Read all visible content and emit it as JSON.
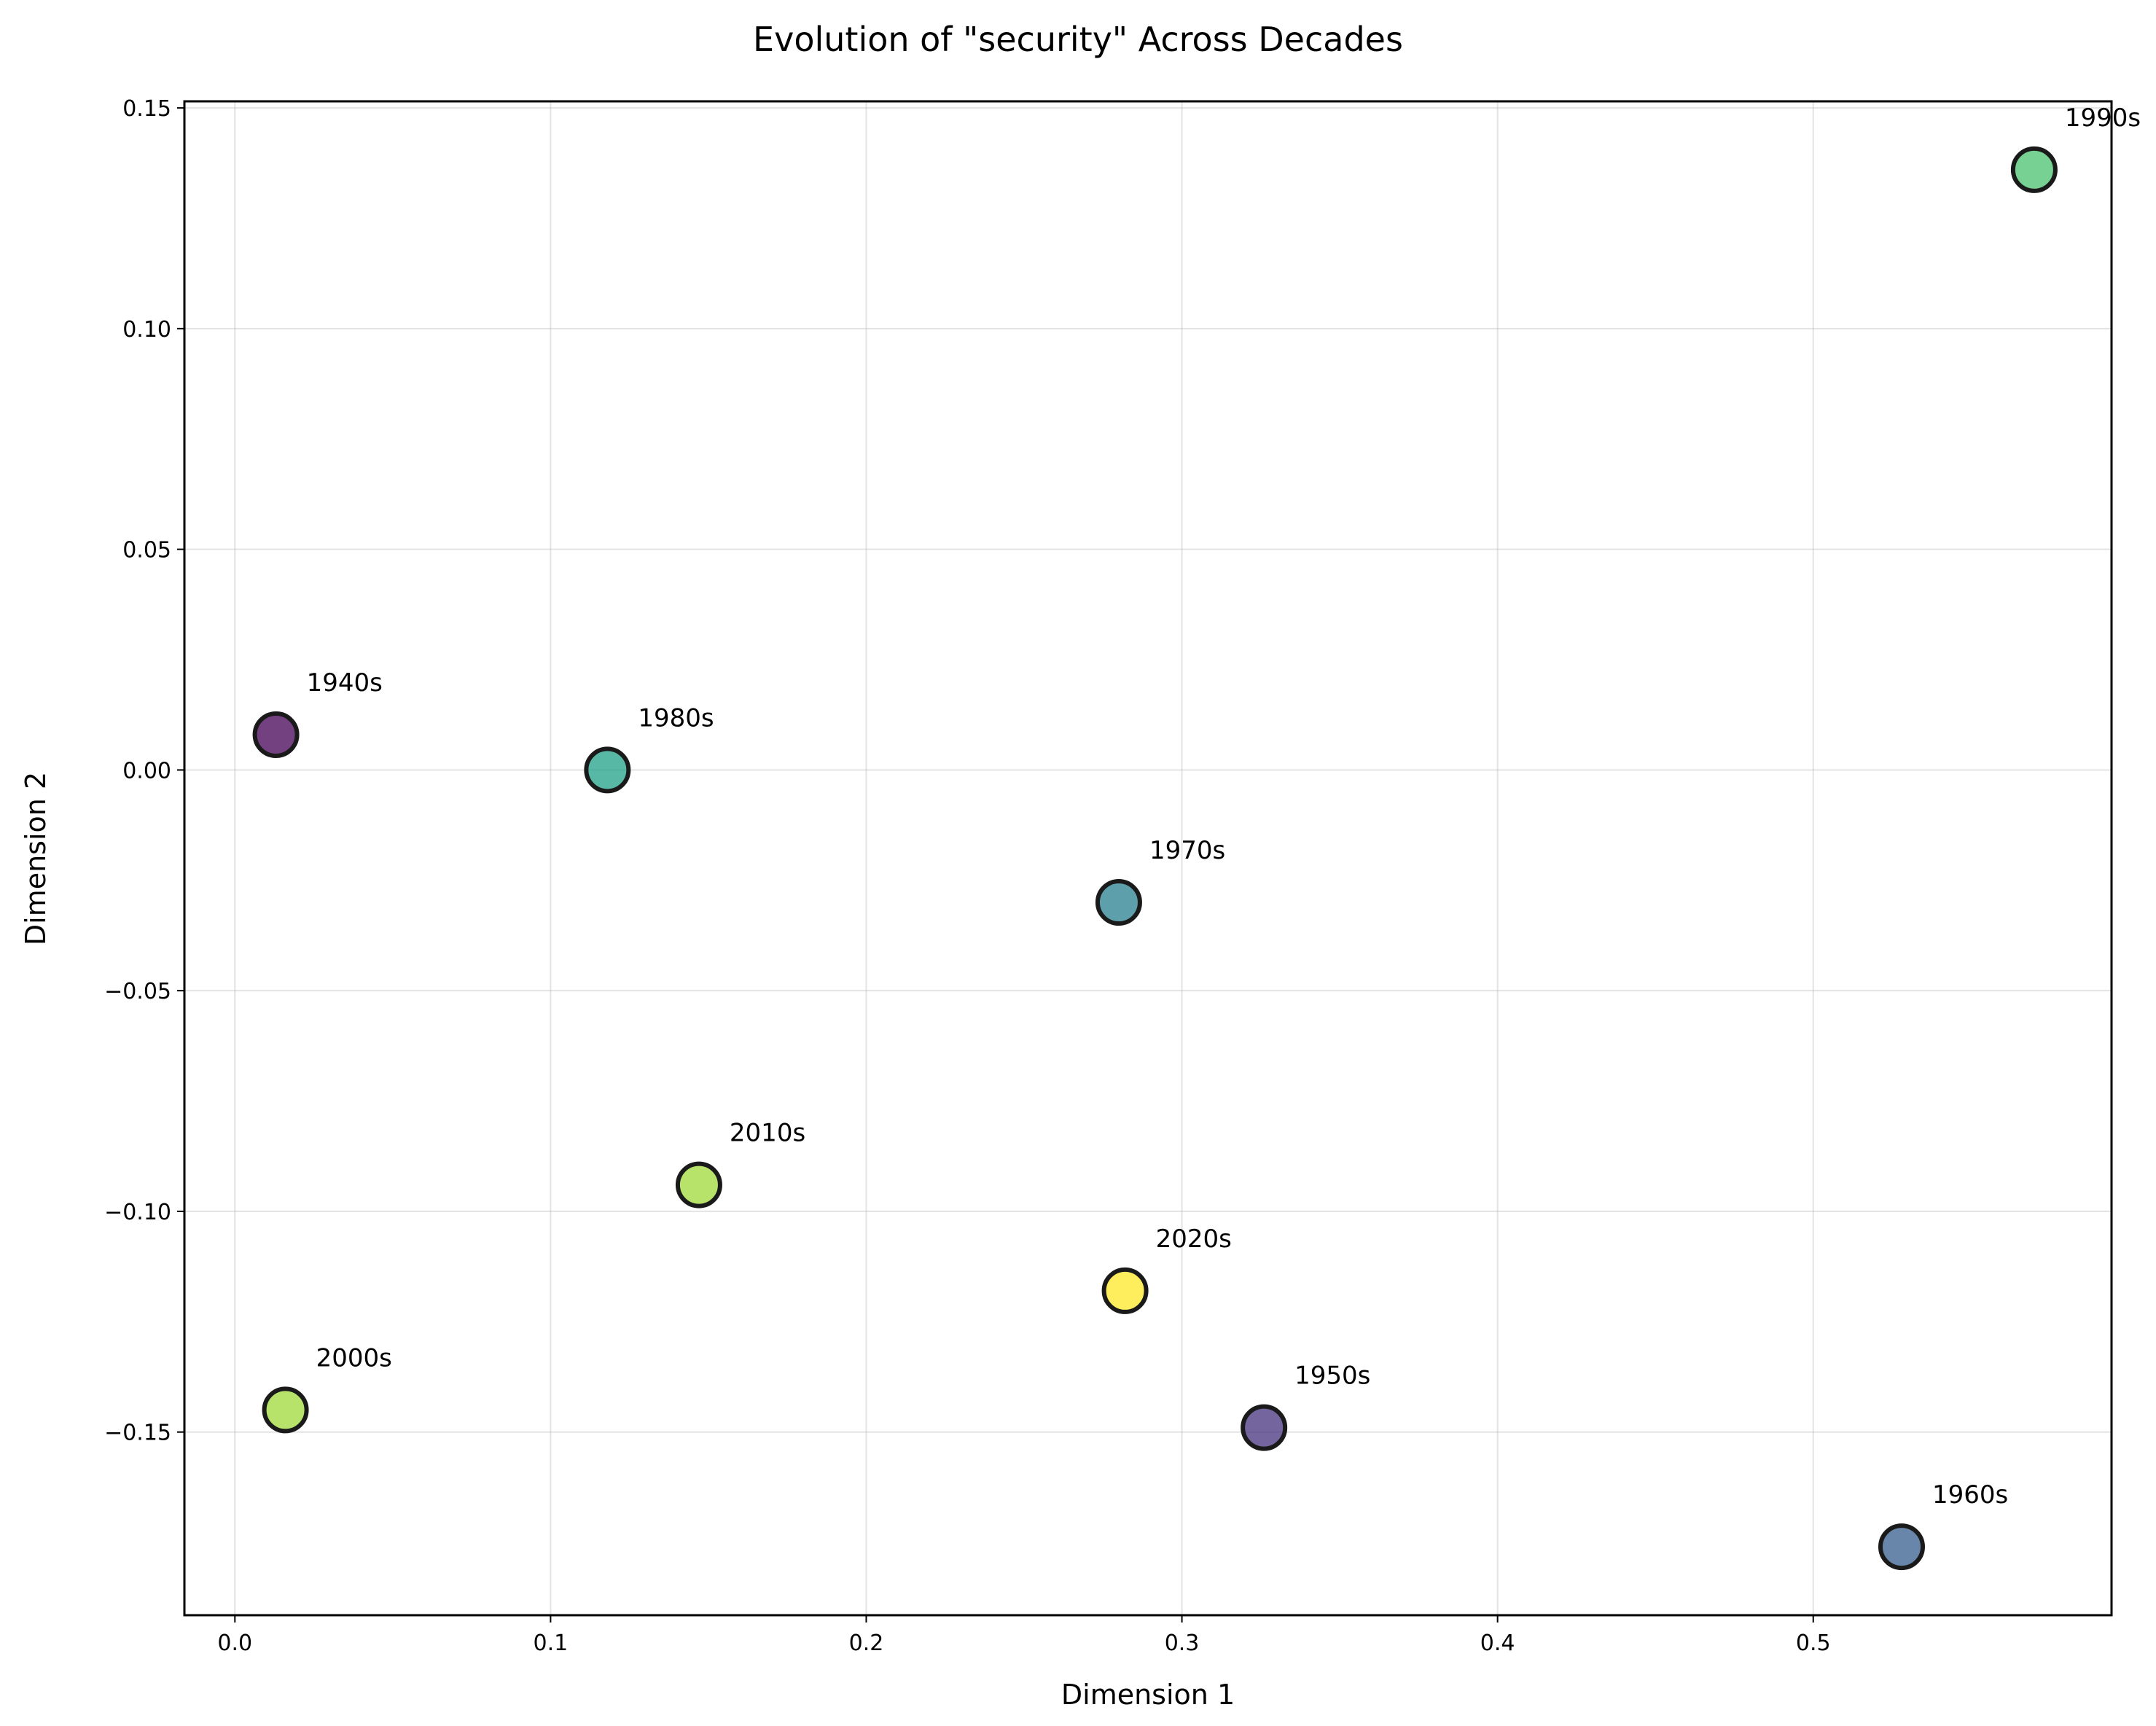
{
  "chart_data": {
    "type": "scatter",
    "title": "Evolution of \"security\" Across Decades",
    "xlabel": "Dimension 1",
    "ylabel": "Dimension 2",
    "xlim": [
      -0.016,
      0.5945
    ],
    "ylim": [
      -0.1915,
      0.1515
    ],
    "xticks": [
      0.0,
      0.1,
      0.2,
      0.3,
      0.4,
      0.5
    ],
    "xtick_labels": [
      "0.0",
      "0.1",
      "0.2",
      "0.3",
      "0.4",
      "0.5"
    ],
    "yticks": [
      0.15,
      0.1,
      0.05,
      0.0,
      -0.05,
      -0.1,
      -0.15
    ],
    "ytick_labels": [
      "0.15",
      "0.10",
      "0.05",
      "0.00",
      "−0.05",
      "−0.10",
      "−0.15"
    ],
    "grid": true,
    "points": [
      {
        "label": "1940s",
        "x": 0.013,
        "y": 0.008,
        "color": "#440154"
      },
      {
        "label": "1950s",
        "x": 0.326,
        "y": -0.149,
        "color": "#46327e"
      },
      {
        "label": "1960s",
        "x": 0.528,
        "y": -0.176,
        "color": "#365c8d"
      },
      {
        "label": "1970s",
        "x": 0.28,
        "y": -0.03,
        "color": "#277f8e"
      },
      {
        "label": "1980s",
        "x": 0.118,
        "y": 0.0,
        "color": "#1fa187"
      },
      {
        "label": "1990s",
        "x": 0.57,
        "y": 0.136,
        "color": "#4ac16d"
      },
      {
        "label": "2000s",
        "x": 0.016,
        "y": -0.145,
        "color": "#a0da39"
      },
      {
        "label": "2010s",
        "x": 0.147,
        "y": -0.094,
        "color": "#a0da39"
      },
      {
        "label": "2020s",
        "x": 0.282,
        "y": -0.118,
        "color": "#fde725"
      }
    ]
  }
}
